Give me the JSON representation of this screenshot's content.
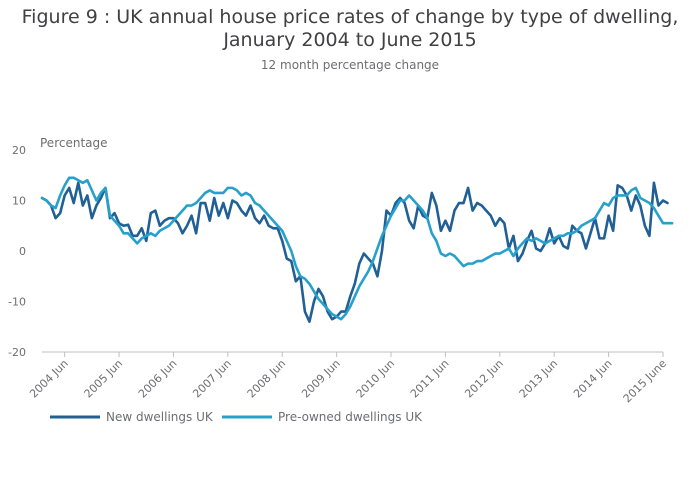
{
  "chart_data": {
    "type": "line",
    "title": "Figure 9 : UK annual house price rates of change by type of dwelling, January 2004 to June 2015",
    "title_lines": [
      "Figure 9 : UK annual house price rates of change by type of dwelling,",
      "January 2004 to June 2015"
    ],
    "subtitle": "12 month percentage change",
    "ylabel": "Percentage",
    "ylim": [
      -20,
      20
    ],
    "yticks": [
      -20,
      -10,
      0,
      10,
      20
    ],
    "xlim_month_index": [
      0,
      137
    ],
    "x_tick_labels": [
      "2004 Jun",
      "2005 Jun",
      "2006 Jun",
      "2007 Jun",
      "2008 Jun",
      "2009 Jun",
      "2010 Jun",
      "2011 Jun",
      "2012 Jun",
      "2013 Jun",
      "2014 Jun",
      "2015 June"
    ],
    "x_tick_month_index": [
      5,
      17,
      29,
      41,
      53,
      65,
      77,
      89,
      101,
      113,
      125,
      137
    ],
    "x_note": "monthly series, index 0 = January 2004, index 137 = June 2015",
    "grid": false,
    "legend_position": "bottom-left",
    "series": [
      {
        "name": "New dwellings UK",
        "color": "#206095",
        "values": [
          10.5,
          10,
          9,
          6.5,
          7.5,
          11,
          12.5,
          9.5,
          13.5,
          9,
          11,
          6.5,
          9,
          10.5,
          12.5,
          6.5,
          7.5,
          5.5,
          5,
          5.2,
          3,
          3,
          4.5,
          2,
          7.5,
          8,
          5,
          6,
          6.5,
          6.5,
          5.5,
          3.5,
          5,
          7,
          3.5,
          9.5,
          9.5,
          6,
          10.5,
          7,
          9.5,
          6.5,
          10,
          9.5,
          8,
          7,
          9,
          6.5,
          5.5,
          7,
          5,
          4.5,
          4.5,
          2,
          -1.5,
          -2,
          -6,
          -5,
          -12,
          -14,
          -10,
          -7.5,
          -9,
          -12,
          -13.5,
          -13,
          -12,
          -12,
          -9,
          -6.5,
          -2.5,
          -0.5,
          -1.5,
          -2.5,
          -5,
          0,
          8,
          7,
          9.5,
          10.5,
          9.5,
          6,
          4.5,
          9,
          7,
          6.5,
          11.5,
          9,
          4,
          6,
          4,
          8,
          9.5,
          9.5,
          12.5,
          8,
          9.5,
          9,
          8,
          7,
          5,
          6.5,
          5.5,
          0.5,
          3,
          -2,
          -0.5,
          2,
          4,
          0.5,
          0,
          1.5,
          4.5,
          1.5,
          3,
          1,
          0.5,
          5,
          4,
          3.5,
          0.5,
          3.5,
          6.5,
          2.5,
          2.5,
          7,
          4,
          13,
          12.5,
          11,
          8,
          11,
          9,
          5,
          3,
          13.5,
          9,
          10,
          9.5
        ]
      },
      {
        "name": "Pre-owned dwellings UK",
        "color": "#27a0cc",
        "values": [
          10.5,
          10,
          9,
          8.5,
          11,
          13,
          14.5,
          14.5,
          14,
          13.5,
          14,
          12,
          10,
          11.5,
          12.5,
          7,
          6,
          5,
          3.5,
          3.5,
          2.5,
          1.5,
          2.5,
          3,
          3.5,
          3,
          4,
          4.5,
          5,
          6,
          7,
          8,
          9,
          9,
          9.5,
          10.5,
          11.5,
          12,
          11.5,
          11.5,
          11.5,
          12.5,
          12.5,
          12,
          11,
          11.5,
          11,
          9.5,
          9,
          8,
          7,
          6,
          5,
          4,
          2,
          0,
          -3,
          -5,
          -5.5,
          -6.5,
          -8,
          -9.5,
          -10.5,
          -11.5,
          -12.5,
          -13,
          -13.5,
          -12.5,
          -11,
          -9,
          -7,
          -5.5,
          -4,
          -2,
          0.5,
          3,
          5,
          7,
          8.5,
          10,
          10,
          11,
          10,
          9,
          8,
          6.5,
          3.5,
          2,
          -0.5,
          -1,
          -0.5,
          -1,
          -2,
          -3,
          -2.5,
          -2.5,
          -2,
          -2,
          -1.5,
          -1,
          -0.5,
          -0.5,
          0,
          0.5,
          -1,
          0.5,
          1.5,
          2.5,
          2,
          2.5,
          2,
          1.5,
          2,
          2.5,
          3,
          3,
          3.5,
          3.5,
          4,
          5,
          5.5,
          6,
          6.5,
          8,
          9.5,
          9,
          10.5,
          11,
          11,
          11,
          12,
          12.5,
          10.5,
          10,
          9.5,
          8.5,
          7,
          5.5,
          5.5,
          5.5
        ]
      }
    ]
  }
}
